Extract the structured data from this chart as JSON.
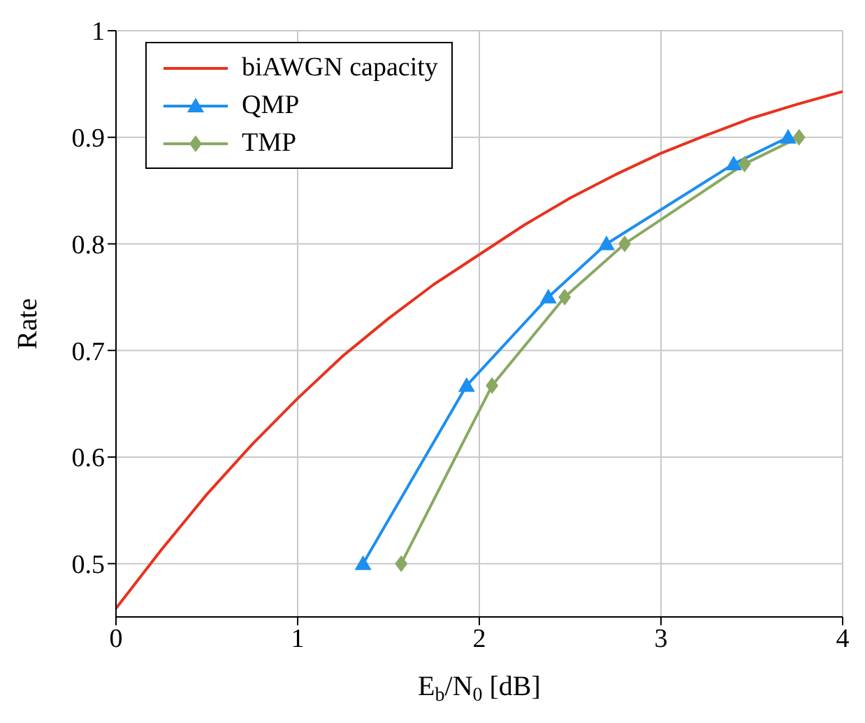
{
  "chart_data": {
    "type": "line",
    "xlabel": "E$_{b}$/N$_{0}$ [dB]",
    "ylabel": "Rate",
    "xlim": [
      0,
      4
    ],
    "xticks": [
      0,
      1,
      2,
      3,
      4
    ],
    "ylim": [
      0.45,
      1
    ],
    "yticks": [
      0.5,
      0.6,
      0.7,
      0.8,
      0.9,
      1
    ],
    "grid": true,
    "legend": "top left",
    "series": [
      {
        "name": "biAWGN capacity",
        "color": "#e8321e",
        "marker": "none",
        "x": [
          0,
          0.25,
          0.5,
          0.75,
          1,
          1.25,
          1.5,
          1.75,
          2,
          2.25,
          2.5,
          2.75,
          3,
          3.25,
          3.5,
          3.75,
          4
        ],
        "values": [
          0.458,
          0.513,
          0.565,
          0.612,
          0.655,
          0.695,
          0.73,
          0.762,
          0.79,
          0.818,
          0.843,
          0.865,
          0.885,
          0.902,
          0.918,
          0.931,
          0.943
        ]
      },
      {
        "name": "QMP",
        "color": "#1c8ff0",
        "marker": "triangle",
        "x": [
          1.36,
          1.93,
          2.38,
          2.7,
          3.4,
          3.7
        ],
        "values": [
          0.5,
          0.667,
          0.75,
          0.8,
          0.875,
          0.9
        ]
      },
      {
        "name": "TMP",
        "color": "#8aa862",
        "marker": "diamond",
        "x": [
          1.57,
          2.07,
          2.47,
          2.8,
          3.46,
          3.76
        ],
        "values": [
          0.5,
          0.667,
          0.75,
          0.8,
          0.875,
          0.9
        ]
      }
    ]
  }
}
